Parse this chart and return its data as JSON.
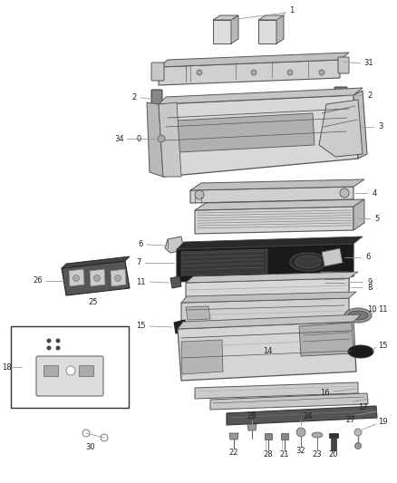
{
  "bg_color": "#ffffff",
  "fig_width": 4.38,
  "fig_height": 5.33,
  "label_fontsize": 6.0,
  "line_color": "#555555",
  "leader_color": "#999999"
}
